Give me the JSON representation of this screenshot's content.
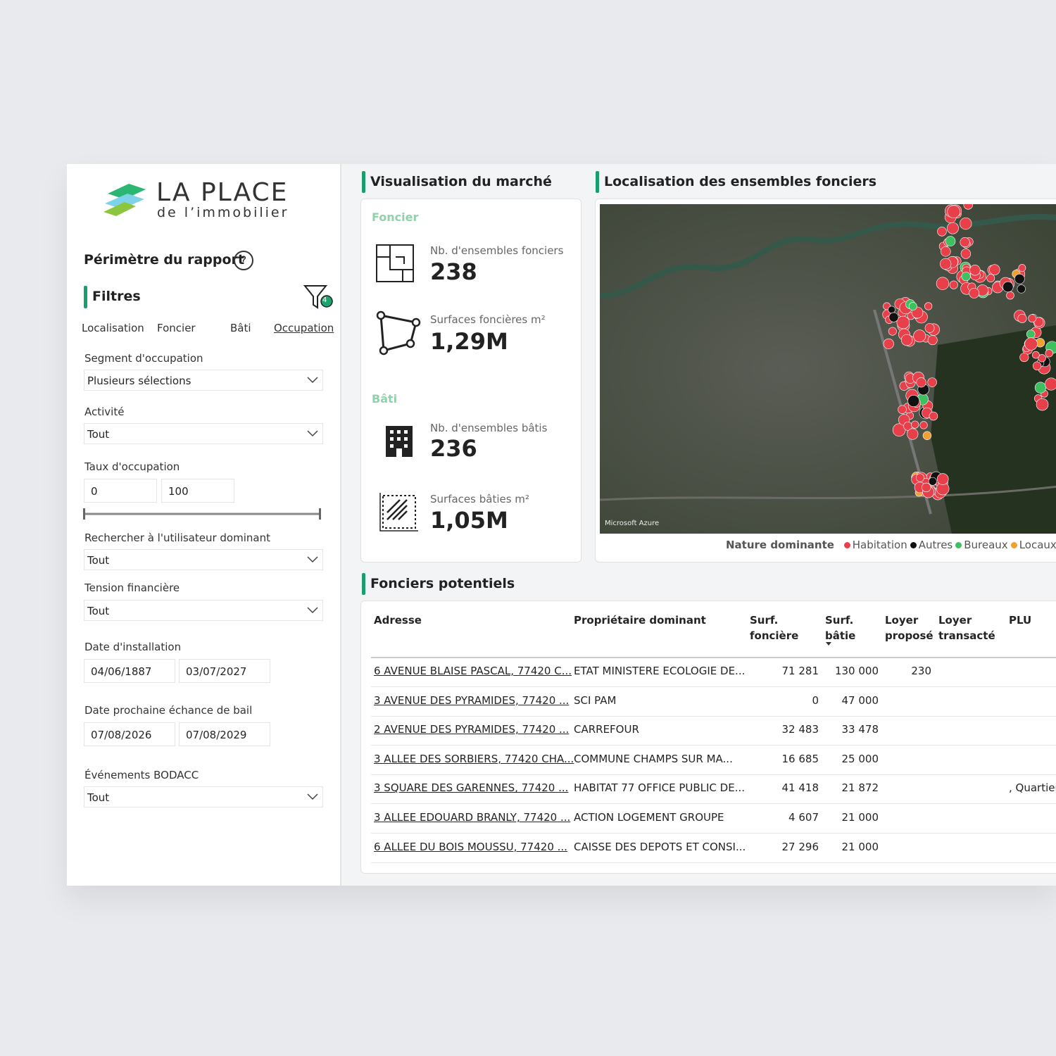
{
  "logo": {
    "title": "LA PLACE",
    "subtitle": "de l’immobilier"
  },
  "sidebar": {
    "title": "Périmètre du rapport",
    "help": "?",
    "filters": "Filtres",
    "active_filters": "4",
    "tabs": [
      "Localisation",
      "Foncier",
      "Bâti",
      "Occupation"
    ],
    "segment": {
      "label": "Segment d'occupation",
      "value": "Plusieurs sélections"
    },
    "activite": {
      "label": "Activité",
      "value": "Tout"
    },
    "taux": {
      "label": "Taux d'occupation",
      "min": "0",
      "max": "100"
    },
    "utilisateur": {
      "label": "Rechercher à l'utilisateur dominant",
      "value": "Tout"
    },
    "tension": {
      "label": "Tension financière",
      "value": "Tout"
    },
    "installation": {
      "label": "Date d'installation",
      "from": "04/06/1887",
      "to": "03/07/2027"
    },
    "echeance": {
      "label": "Date prochaine échance de bail",
      "from": "07/08/2026",
      "to": "07/08/2029"
    },
    "bodacc": {
      "label": "Événements BODACC",
      "value": "Tout"
    }
  },
  "market": {
    "title": "Visualisation du marché",
    "foncier": {
      "title": "Foncier",
      "kpis": [
        {
          "label": "Nb. d'ensembles fonciers",
          "value": "238"
        },
        {
          "label": "Surfaces foncières m²",
          "value": "1,29M"
        }
      ]
    },
    "bati": {
      "title": "Bâti",
      "kpis": [
        {
          "label": "Nb. d'ensembles bâtis",
          "value": "236"
        },
        {
          "label": "Surfaces bâties m²",
          "value": "1,05M"
        }
      ]
    }
  },
  "map": {
    "title": "Localisation des ensembles fonciers",
    "attribution": "Microsoft Azure",
    "legend": {
      "title": "Nature dominante",
      "items": [
        "Habitation",
        "Autres",
        "Bureaux",
        "Locaux c"
      ]
    }
  },
  "table": {
    "title": "Fonciers potentiels",
    "columns": [
      "Adresse",
      "Propriétaire dominant",
      "Surf. foncière",
      "Surf. bâtie",
      "Loyer proposé",
      "Loyer transacté",
      "PLU"
    ],
    "rows": [
      [
        "6 AVENUE BLAISE PASCAL, 77420 C...",
        "ETAT MINISTERE ECOLOGIE DE...",
        "71 281",
        "130 000",
        "230",
        null,
        null
      ],
      [
        "3 AVENUE DES PYRAMIDES, 77420 ...",
        "SCI PAM",
        "0",
        "47 000",
        null,
        null,
        null
      ],
      [
        "2 AVENUE DES PYRAMIDES, 77420 ...",
        "CARREFOUR",
        "32 483",
        "33 478",
        null,
        null,
        null
      ],
      [
        "3 ALLEE DES SORBIERS, 77420 CHA...",
        "COMMUNE CHAMPS SUR MA...",
        "16 685",
        "25 000",
        null,
        null,
        null
      ],
      [
        "3 SQUARE DES GARENNES, 77420 ...",
        "HABITAT 77 OFFICE PUBLIC DE...",
        "41 418",
        "21 872",
        null,
        null,
        ", Quartier"
      ],
      [
        "3 ALLEE EDOUARD BRANLY, 77420 ...",
        "ACTION LOGEMENT GROUPE",
        "4 607",
        "21 000",
        null,
        null,
        null
      ],
      [
        "6 ALLEE DU BOIS MOUSSU, 77420 ...",
        "CAISSE DES DEPOTS ET CONSI...",
        "27 296",
        "21 000",
        null,
        null,
        null
      ]
    ]
  }
}
